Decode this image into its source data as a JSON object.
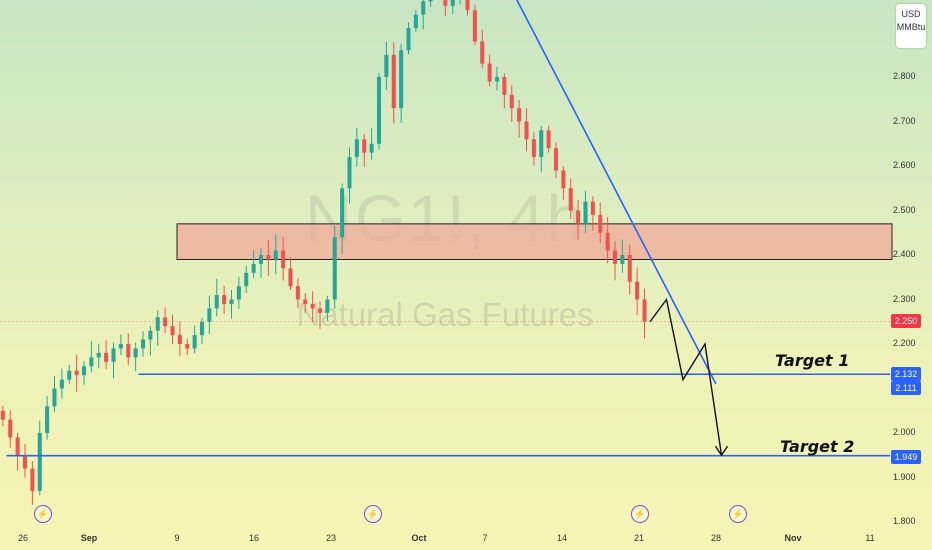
{
  "header": {
    "currency": "USD",
    "unit": "MMBtu"
  },
  "watermark": {
    "symbol": "NG1!, 4h",
    "name": "Natural Gas Futures"
  },
  "colors": {
    "up": "#26a69a",
    "down": "#ef5350",
    "line": "#2962ff",
    "zone_fill": "#f0a89a",
    "price_badge": "#f23645",
    "level_badge": "#2962ff"
  },
  "annotations": {
    "target1": "Target 1",
    "target2": "Target 2"
  },
  "event_icons": [
    "lightning-circle-icon",
    "lightning-circle-icon",
    "lightning-circle-icon",
    "lightning-circle-icon"
  ],
  "chart_data": {
    "type": "candlestick",
    "title": "",
    "xlabel": "",
    "ylabel": "",
    "ylim": [
      1.77,
      3.04
    ],
    "y_ticks": [
      "2.800",
      "2.700",
      "2.600",
      "2.500",
      "2.400",
      "2.300",
      "2.200",
      "2.000",
      "1.900",
      "1.800"
    ],
    "x_ticks": [
      "26",
      "Sep",
      "9",
      "16",
      "23",
      "Oct",
      "7",
      "14",
      "21",
      "28",
      "Nov",
      "11"
    ],
    "x_tick_days": [
      -6,
      0,
      8,
      15,
      22,
      30,
      36,
      43,
      50,
      57,
      64,
      71
    ],
    "last_price": "2.250",
    "closes": [
      2.05,
      2.03,
      1.99,
      1.95,
      1.92,
      1.87,
      2.0,
      2.06,
      2.1,
      2.12,
      2.14,
      2.13,
      2.15,
      2.17,
      2.18,
      2.16,
      2.19,
      2.2,
      2.17,
      2.19,
      2.21,
      2.23,
      2.26,
      2.24,
      2.22,
      2.2,
      2.19,
      2.22,
      2.25,
      2.28,
      2.31,
      2.29,
      2.3,
      2.33,
      2.36,
      2.38,
      2.4,
      2.39,
      2.41,
      2.37,
      2.33,
      2.3,
      2.29,
      2.28,
      2.27,
      2.3,
      2.44,
      2.55,
      2.62,
      2.66,
      2.63,
      2.65,
      2.8,
      2.85,
      2.73,
      2.86,
      2.91,
      2.94,
      2.97,
      2.99,
      3.0,
      2.96,
      2.98,
      3.01,
      2.95,
      2.88,
      2.83,
      2.79,
      2.8,
      2.76,
      2.73,
      2.7,
      2.66,
      2.62,
      2.68,
      2.64,
      2.59,
      2.55,
      2.5,
      2.47,
      2.52,
      2.49,
      2.45,
      2.41,
      2.38,
      2.4,
      2.34,
      2.3,
      2.25
    ],
    "resistance_zone": {
      "from": 2.39,
      "to": 2.47,
      "x_start": 8,
      "x_end": 73
    },
    "trendline": {
      "from": [
        37.5,
        3.04
      ],
      "to": [
        57,
        2.11
      ]
    },
    "projection": [
      [
        51,
        2.25
      ],
      [
        52.5,
        2.3
      ],
      [
        54,
        2.12
      ],
      [
        56,
        2.2
      ],
      [
        57.5,
        1.95
      ]
    ],
    "levels": [
      {
        "label": "Target 1",
        "value": 2.132,
        "badge": "2.132"
      },
      {
        "label": "",
        "value": 2.111,
        "badge": "2.111"
      },
      {
        "label": "Target 2",
        "value": 1.949,
        "badge": "1.949"
      }
    ]
  }
}
